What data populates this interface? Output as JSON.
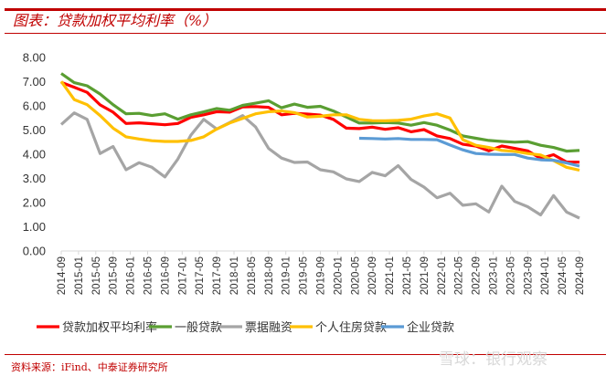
{
  "header": {
    "title": "图表：贷款加权平均利率（%）"
  },
  "footer": {
    "source": "资料来源：iFind、中泰证券研究所",
    "watermark": "雪球：银行观察"
  },
  "colors": {
    "accent": "#c00000"
  },
  "chart_data": {
    "type": "line",
    "title": "",
    "xlabel": "",
    "ylabel": "",
    "ylim": [
      0,
      8
    ],
    "yticks": [
      "0.00",
      "1.00",
      "2.00",
      "3.00",
      "4.00",
      "5.00",
      "6.00",
      "7.00",
      "8.00"
    ],
    "xticks": [
      "2014-09",
      "2015-01",
      "2015-05",
      "2015-09",
      "2016-01",
      "2016-05",
      "2016-09",
      "2017-01",
      "2017-05",
      "2017-09",
      "2018-01",
      "2018-05",
      "2018-09",
      "2019-01",
      "2019-05",
      "2019-09",
      "2020-01",
      "2020-05",
      "2020-09",
      "2021-01",
      "2021-05",
      "2021-09",
      "2022-01",
      "2022-05",
      "2022-09",
      "2023-01",
      "2023-05",
      "2023-09",
      "2024-01",
      "2024-05",
      "2024-09"
    ],
    "x": [
      "2014-09",
      "2014-12",
      "2015-03",
      "2015-06",
      "2015-09",
      "2015-12",
      "2016-03",
      "2016-06",
      "2016-09",
      "2016-12",
      "2017-03",
      "2017-06",
      "2017-09",
      "2017-12",
      "2018-03",
      "2018-06",
      "2018-09",
      "2018-12",
      "2019-03",
      "2019-06",
      "2019-09",
      "2019-12",
      "2020-03",
      "2020-06",
      "2020-09",
      "2020-12",
      "2021-03",
      "2021-06",
      "2021-09",
      "2021-12",
      "2022-03",
      "2022-06",
      "2022-09",
      "2022-12",
      "2023-03",
      "2023-06",
      "2023-09",
      "2023-12",
      "2024-03",
      "2024-06",
      "2024-09"
    ],
    "grid": false,
    "legend": "bottom",
    "series": [
      {
        "name": "贷款加权平均利率",
        "color": "#ff0000",
        "values": [
          6.97,
          6.77,
          6.56,
          6.04,
          5.74,
          5.27,
          5.3,
          5.26,
          5.22,
          5.27,
          5.53,
          5.63,
          5.76,
          5.74,
          5.96,
          5.97,
          5.94,
          5.63,
          5.69,
          5.66,
          5.62,
          5.44,
          5.08,
          5.06,
          5.12,
          5.03,
          5.1,
          4.93,
          5.02,
          4.76,
          4.65,
          4.41,
          4.34,
          4.14,
          4.34,
          4.24,
          4.14,
          3.83,
          3.98,
          3.68,
          3.67
        ]
      },
      {
        "name": "一般贷款",
        "color": "#5a9e32",
        "values": [
          7.34,
          6.96,
          6.83,
          6.49,
          6.05,
          5.67,
          5.69,
          5.6,
          5.67,
          5.45,
          5.63,
          5.75,
          5.89,
          5.82,
          6.02,
          6.11,
          6.21,
          5.92,
          6.07,
          5.94,
          5.98,
          5.79,
          5.54,
          5.29,
          5.29,
          5.31,
          5.29,
          5.2,
          5.31,
          5.2,
          5.0,
          4.76,
          4.66,
          4.57,
          4.53,
          4.5,
          4.52,
          4.37,
          4.28,
          4.13,
          4.16
        ]
      },
      {
        "name": "票据融资",
        "color": "#a5a5a5",
        "values": [
          5.23,
          5.71,
          5.44,
          4.03,
          4.32,
          3.36,
          3.65,
          3.46,
          3.06,
          3.8,
          4.79,
          5.44,
          5.04,
          5.31,
          5.6,
          5.13,
          4.24,
          3.84,
          3.66,
          3.68,
          3.36,
          3.27,
          2.98,
          2.87,
          3.25,
          3.11,
          3.53,
          2.96,
          2.64,
          2.2,
          2.39,
          1.89,
          1.95,
          1.61,
          2.68,
          2.05,
          1.83,
          1.49,
          2.29,
          1.61,
          1.36
        ]
      },
      {
        "name": "个人住房贷款",
        "color": "#ffc000",
        "values": [
          7.01,
          6.26,
          6.05,
          5.6,
          5.08,
          4.72,
          4.63,
          4.56,
          4.53,
          4.53,
          4.57,
          4.72,
          5.04,
          5.29,
          5.48,
          5.67,
          5.76,
          5.79,
          5.72,
          5.54,
          5.57,
          5.63,
          5.63,
          5.44,
          5.39,
          5.38,
          5.4,
          5.45,
          5.58,
          5.67,
          5.5,
          4.6,
          4.37,
          4.28,
          4.16,
          4.12,
          4.03,
          3.97,
          3.74,
          3.46,
          3.34
        ]
      },
      {
        "name": "企业贷款",
        "color": "#5b9bd5",
        "values": [
          null,
          null,
          null,
          null,
          null,
          null,
          null,
          null,
          null,
          null,
          null,
          null,
          null,
          null,
          null,
          null,
          null,
          null,
          null,
          null,
          null,
          null,
          null,
          4.66,
          4.65,
          4.63,
          4.65,
          4.61,
          4.61,
          4.6,
          4.38,
          4.18,
          4.03,
          4.0,
          3.99,
          3.99,
          3.84,
          3.77,
          3.75,
          3.64,
          3.51
        ]
      }
    ]
  }
}
